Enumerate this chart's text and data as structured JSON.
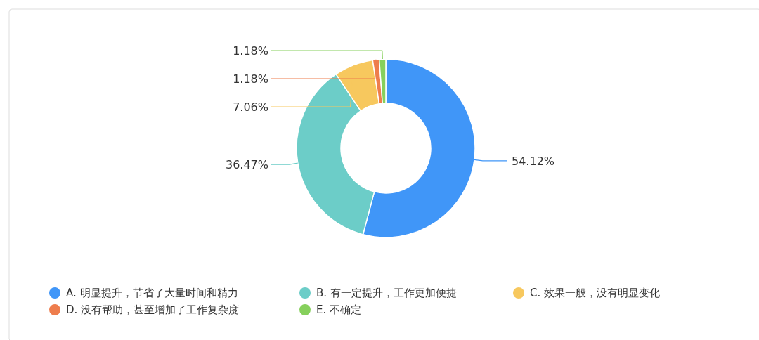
{
  "chart_data": {
    "type": "donut",
    "categories": [
      "A. 明显提升，节省了大量时间和精力",
      "B. 有一定提升，工作更加便捷",
      "C. 效果一般，没有明显变化",
      "D. 没有帮助，甚至增加了工作复杂度",
      "E. 不确定"
    ],
    "values": [
      54.12,
      36.47,
      7.06,
      1.18,
      1.18
    ],
    "colors": [
      "#4096f8",
      "#6ccdc8",
      "#f7c85e",
      "#ee7d4d",
      "#86d05c"
    ],
    "value_labels": [
      "54.12%",
      "36.47%",
      "7.06%",
      "1.18%",
      "1.18%"
    ],
    "legend": "bottom"
  }
}
